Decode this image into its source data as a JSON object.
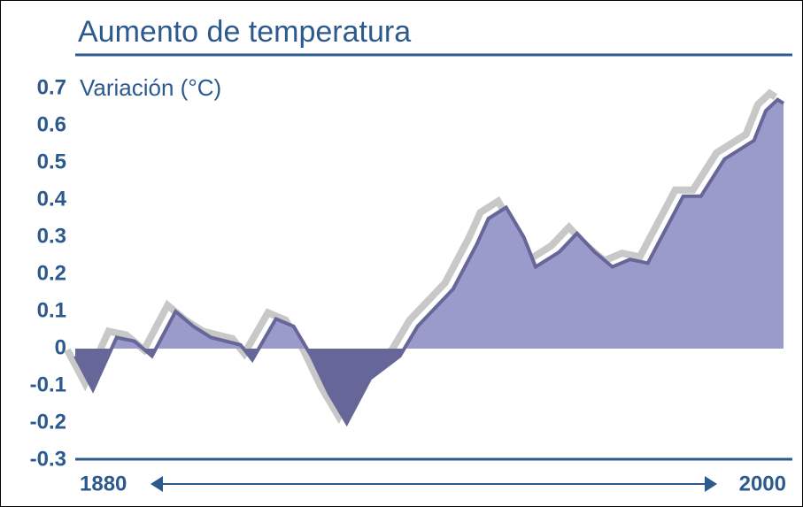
{
  "chart_data": {
    "type": "area",
    "title": "Aumento de temperatura",
    "y_label": "Variación (°C)",
    "x": [
      1880,
      1883,
      1887,
      1890,
      1893,
      1897,
      1900,
      1903,
      1908,
      1910,
      1914,
      1917,
      1920,
      1923,
      1926,
      1930,
      1935,
      1938,
      1944,
      1948,
      1950,
      1953,
      1956,
      1958,
      1962,
      1965,
      1968,
      1971,
      1974,
      1977,
      1980,
      1983,
      1986,
      1990,
      1995,
      1997,
      1999,
      2000
    ],
    "values": [
      -0.02,
      -0.11,
      0.03,
      0.02,
      -0.02,
      0.1,
      0.06,
      0.03,
      0.01,
      -0.03,
      0.08,
      0.06,
      -0.02,
      -0.12,
      -0.2,
      -0.08,
      -0.02,
      0.06,
      0.16,
      0.28,
      0.35,
      0.38,
      0.3,
      0.22,
      0.26,
      0.31,
      0.26,
      0.22,
      0.24,
      0.23,
      0.32,
      0.41,
      0.41,
      0.51,
      0.56,
      0.64,
      0.67,
      0.66
    ],
    "colors": {
      "positive": "#9a9acb",
      "negative": "#666699",
      "shadow": "#c8c8c8"
    },
    "xlim": [
      1880,
      2000
    ],
    "xticks": [
      1880,
      2000
    ],
    "ylim": [
      -0.3,
      0.7
    ],
    "yticks": [
      -0.3,
      -0.2,
      -0.1,
      0,
      0.1,
      0.2,
      0.3,
      0.4,
      0.5,
      0.6,
      0.7
    ]
  }
}
